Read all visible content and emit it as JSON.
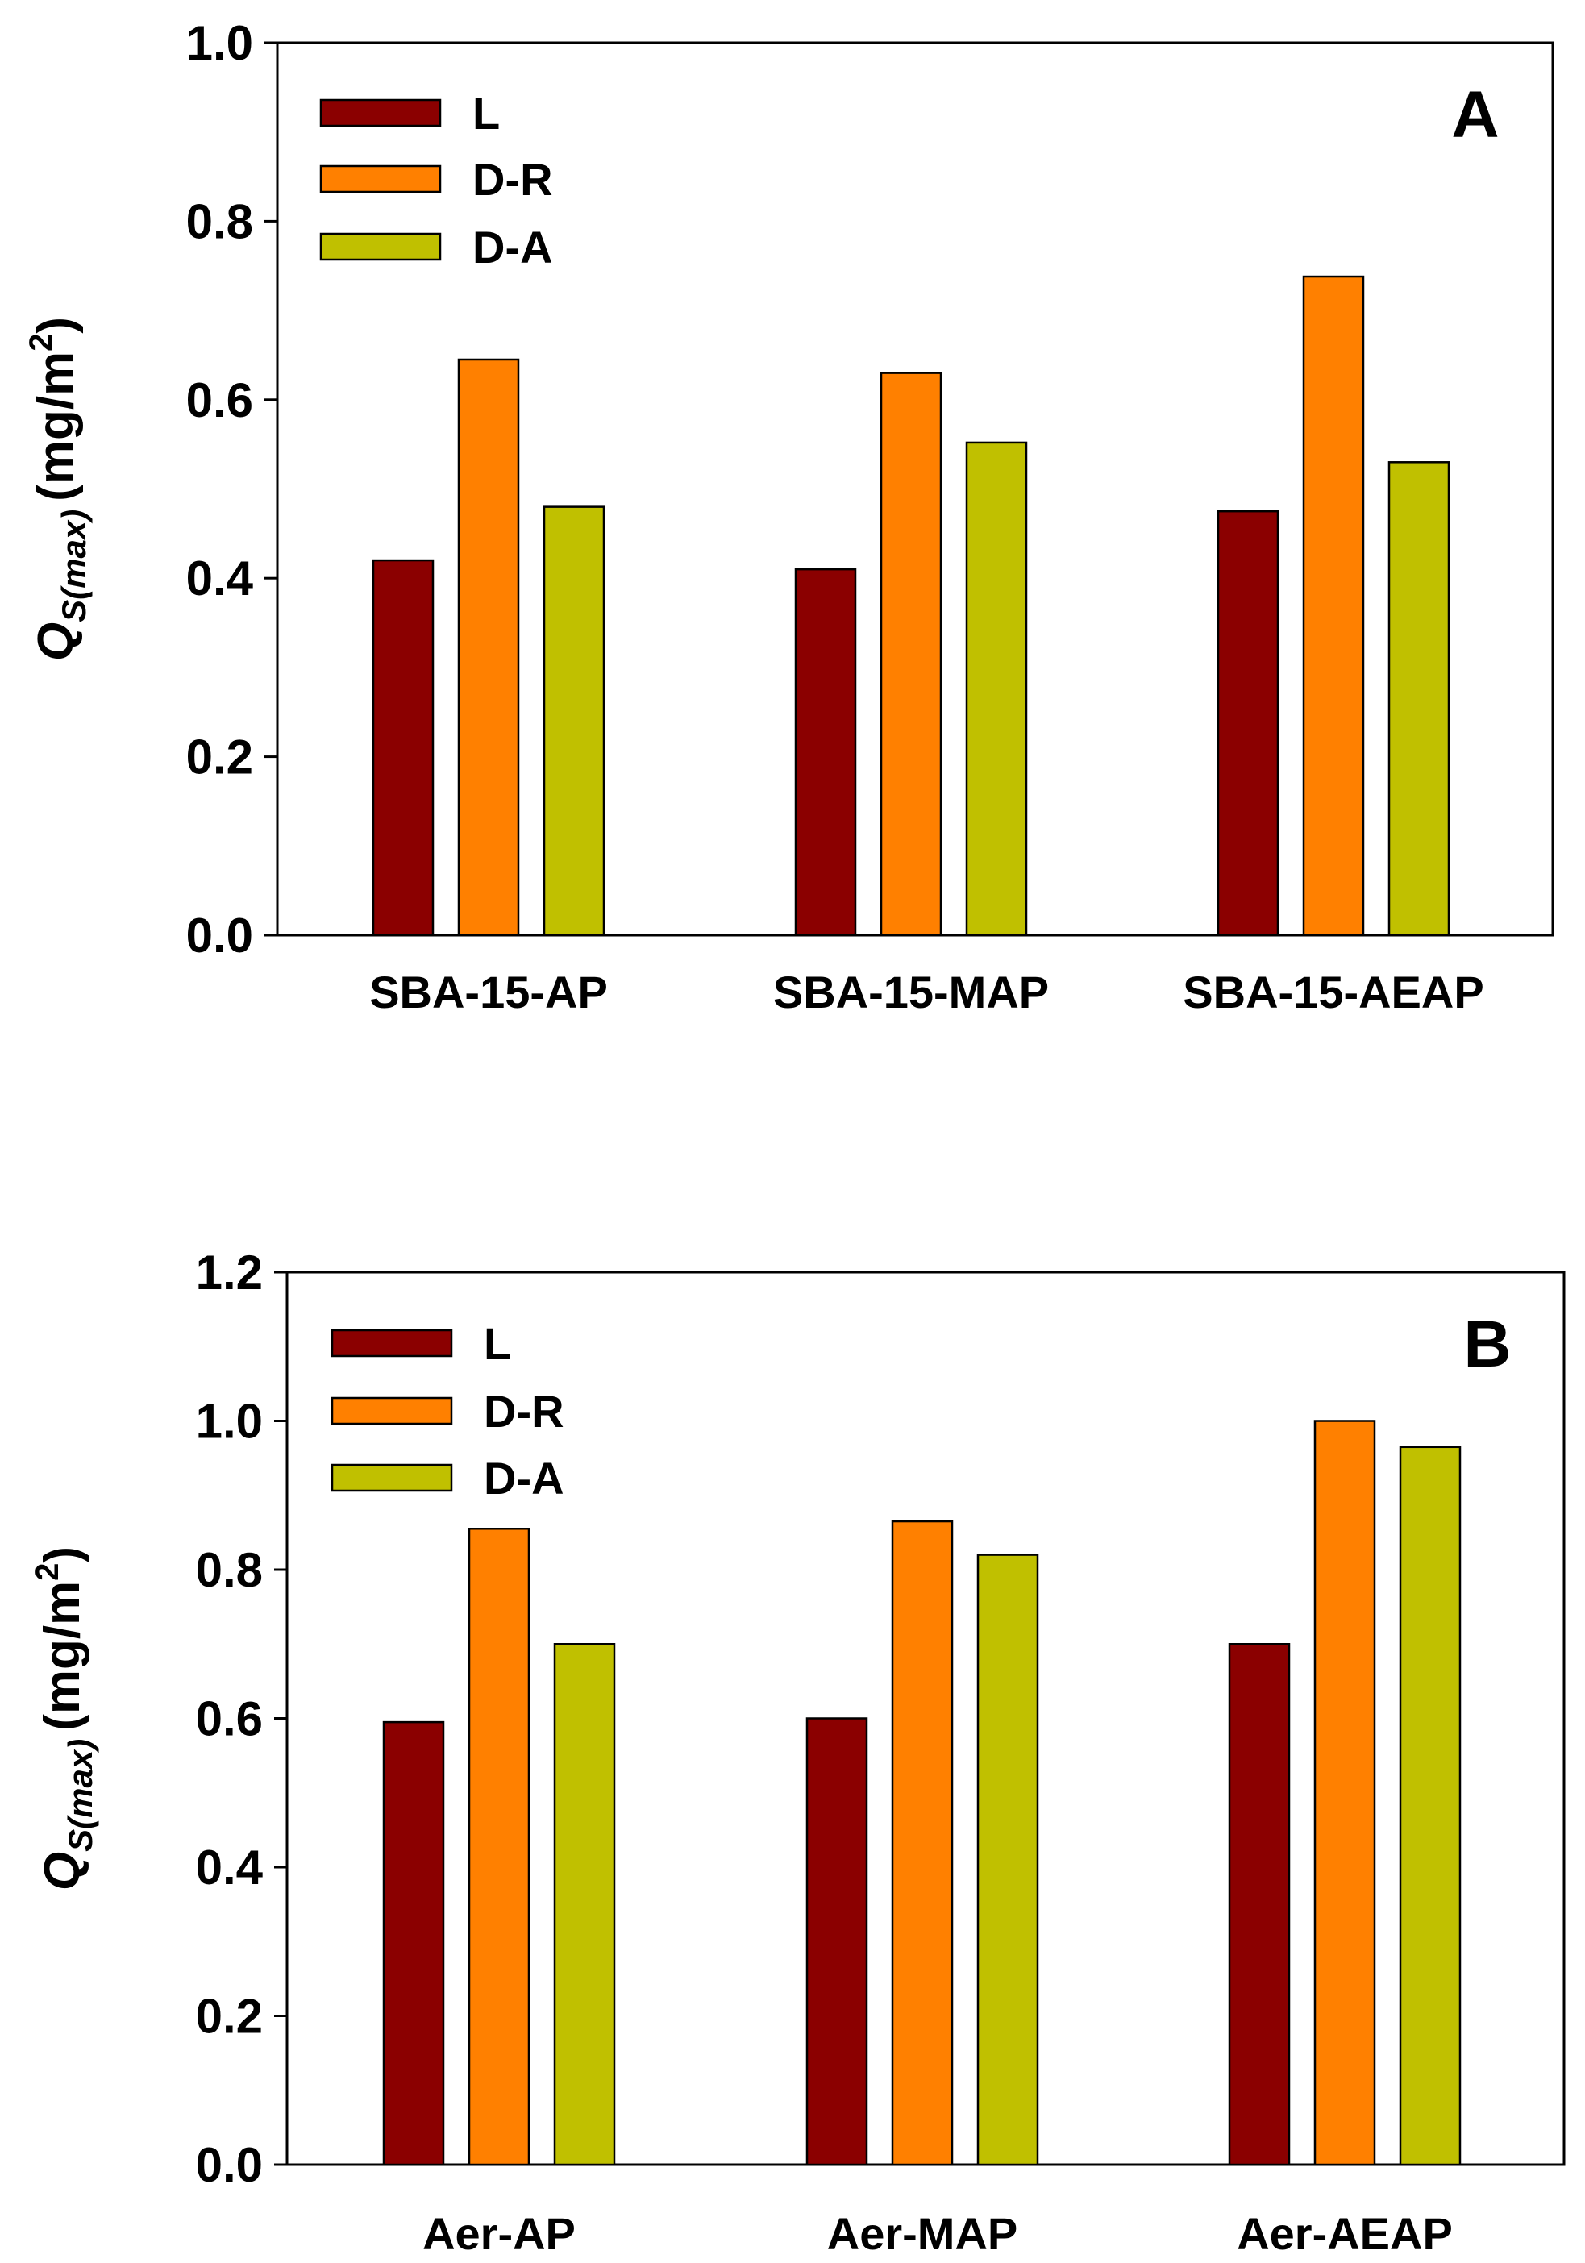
{
  "chart_data": [
    {
      "type": "bar",
      "panel_label": "A",
      "categories": [
        "SBA-15-AP",
        "SBA-15-MAP",
        "SBA-15-AEAP"
      ],
      "series": [
        {
          "name": "L",
          "color": "#8b0000",
          "values": [
            0.42,
            0.41,
            0.475
          ]
        },
        {
          "name": "D-R",
          "color": "#ff8000",
          "values": [
            0.645,
            0.63,
            0.738
          ]
        },
        {
          "name": "D-A",
          "color": "#c0c000",
          "values": [
            0.48,
            0.552,
            0.53
          ]
        }
      ],
      "ylabel": {
        "q": "Q",
        "sub": "S(max)",
        "unit": "(mg/m",
        "sup": "2",
        "close": ")"
      },
      "ylim": [
        0,
        1.0
      ],
      "yticks": [
        "0.0",
        "0.2",
        "0.4",
        "0.6",
        "0.8",
        "1.0"
      ],
      "legend_position": "top-left"
    },
    {
      "type": "bar",
      "panel_label": "B",
      "categories": [
        "Aer-AP",
        "Aer-MAP",
        "Aer-AEAP"
      ],
      "series": [
        {
          "name": "L",
          "color": "#8b0000",
          "values": [
            0.595,
            0.6,
            0.7
          ]
        },
        {
          "name": "D-R",
          "color": "#ff8000",
          "values": [
            0.855,
            0.865,
            1.0
          ]
        },
        {
          "name": "D-A",
          "color": "#c0c000",
          "values": [
            0.7,
            0.82,
            0.965
          ]
        }
      ],
      "ylabel": {
        "q": "Q",
        "sub": "S(max)",
        "unit": "(mg/m",
        "sup": "2",
        "close": ")"
      },
      "ylim": [
        0,
        1.2
      ],
      "yticks": [
        "0.0",
        "0.2",
        "0.4",
        "0.6",
        "0.8",
        "1.0",
        "1.2"
      ],
      "legend_position": "top-left"
    }
  ]
}
